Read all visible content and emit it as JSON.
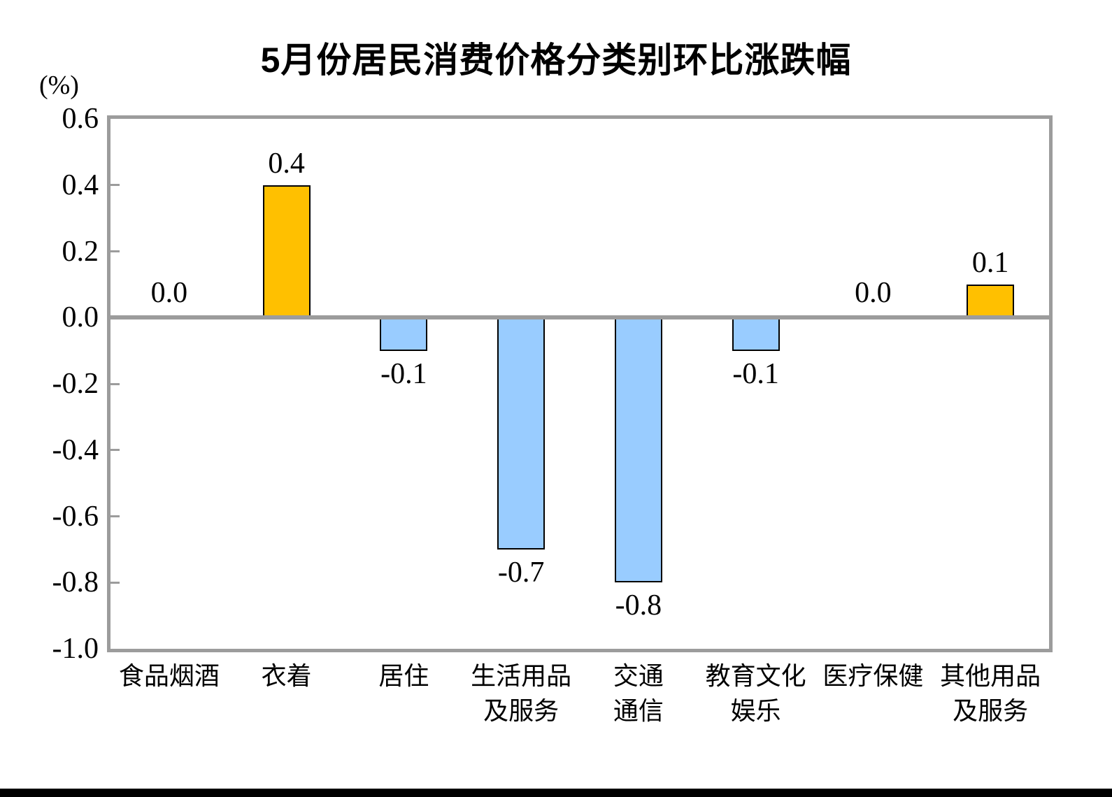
{
  "chart_data": {
    "type": "bar",
    "title": "5月份居民消费价格分类别环比涨跌幅",
    "ylabel": "(%)",
    "xlabel": "",
    "categories": [
      "食品烟酒",
      "衣着",
      "居住",
      "生活用品及服务",
      "交通通信",
      "教育文化娱乐",
      "医疗保健",
      "其他用品及服务"
    ],
    "category_lines": [
      [
        "食品烟酒"
      ],
      [
        "衣着"
      ],
      [
        "居住"
      ],
      [
        "生活用品",
        "及服务"
      ],
      [
        "交通",
        "通信"
      ],
      [
        "教育文化",
        "娱乐"
      ],
      [
        "医疗保健"
      ],
      [
        "其他用品",
        "及服务"
      ]
    ],
    "values": [
      0.0,
      0.4,
      -0.1,
      -0.7,
      -0.8,
      -0.1,
      0.0,
      0.1
    ],
    "data_labels": [
      "0.0",
      "0.4",
      "-0.1",
      "-0.7",
      "-0.8",
      "-0.1",
      "0.0",
      "0.1"
    ],
    "ylim": [
      -1.0,
      0.6
    ],
    "ytick_step": 0.2,
    "ytick_labels": [
      "0.6",
      "0.4",
      "0.2",
      "0.0",
      "-0.2",
      "-0.4",
      "-0.6",
      "-0.8",
      "-1.0"
    ],
    "grid": false,
    "legend_position": "none"
  },
  "colors": {
    "positive_bar": "#FFC000",
    "negative_bar": "#99CCFF",
    "bar_border": "#000000",
    "axis": "#9c9c9c",
    "text": "#000000",
    "bottom_strip": "#000000"
  }
}
